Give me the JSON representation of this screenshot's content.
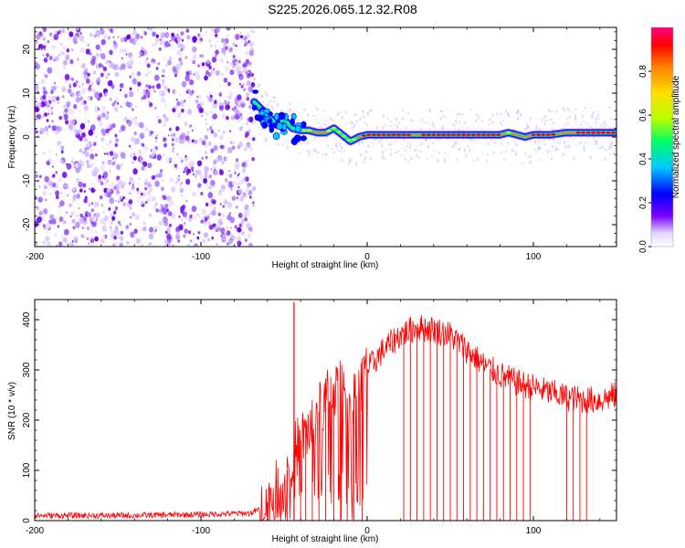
{
  "title": "S225.2026.065.12.32.R08",
  "chart_data": [
    {
      "type": "heatmap",
      "title": "S225.2026.065.12.32.R08",
      "xlabel": "Height of straight line (km)",
      "ylabel": "Frequency (Hz)",
      "xlim": [
        -200,
        150
      ],
      "ylim": [
        -25,
        25
      ],
      "x_ticks": [
        "-200",
        "-100",
        "0",
        "100"
      ],
      "y_ticks": [
        "20",
        "10",
        "0",
        "-10",
        "-20"
      ],
      "colorbar": {
        "label": "Normalized spectral amplitude",
        "range": [
          0,
          1
        ],
        "ticks": [
          "0.0",
          "0.2",
          "0.4",
          "0.6",
          "0.8"
        ],
        "colormap": [
          "#ffffff",
          "#7a00ff",
          "#0000ff",
          "#00c8ff",
          "#00ff66",
          "#b4ff00",
          "#ffe000",
          "#ff8000",
          "#ff0000",
          "#ff0080"
        ]
      },
      "noise_region": {
        "x_range": [
          -200,
          -68
        ],
        "freq_range": [
          -25,
          25
        ],
        "amplitude": 0.05
      },
      "signal_ridge": {
        "x": [
          -68,
          -60,
          -55,
          -50,
          -45,
          -40,
          -35,
          -30,
          -25,
          -20,
          -15,
          -10,
          -5,
          0,
          10,
          20,
          30,
          40,
          50,
          60,
          70,
          80,
          85,
          90,
          95,
          100,
          110,
          120,
          130,
          140,
          150
        ],
        "freq": [
          8,
          5,
          3,
          4,
          2,
          1.5,
          1.5,
          1,
          1,
          2,
          0.5,
          -1,
          0,
          0.5,
          0.5,
          0.5,
          0.5,
          0.5,
          0.5,
          0.5,
          0.5,
          0.5,
          1,
          0.5,
          0,
          0.5,
          0.5,
          1,
          1,
          1,
          1
        ],
        "amplitude": [
          0.3,
          0.3,
          0.35,
          0.4,
          0.45,
          0.55,
          0.75,
          0.85,
          0.8,
          0.7,
          0.6,
          0.5,
          0.85,
          0.95,
          0.9,
          0.95,
          0.85,
          0.95,
          0.9,
          0.95,
          0.9,
          0.9,
          0.7,
          0.9,
          0.8,
          0.9,
          0.9,
          0.85,
          0.9,
          0.9,
          0.9
        ]
      }
    },
    {
      "type": "line",
      "xlabel": "Height of straight line (km)",
      "ylabel": "SNR (10 * v/v)",
      "xlim": [
        -200,
        150
      ],
      "ylim": [
        0,
        440
      ],
      "x_ticks": [
        "-200",
        "-100",
        "0",
        "100"
      ],
      "y_ticks": [
        "400",
        "300",
        "200",
        "100",
        "0"
      ],
      "color": "#ff0000",
      "envelope": {
        "x": [
          -200,
          -150,
          -100,
          -70,
          -60,
          -55,
          -50,
          -45,
          -40,
          -35,
          -30,
          -25,
          -20,
          -15,
          -10,
          -5,
          0,
          5,
          10,
          20,
          30,
          40,
          50,
          60,
          70,
          80,
          90,
          100,
          110,
          120,
          130,
          140,
          150
        ],
        "y": [
          10,
          10,
          12,
          15,
          30,
          60,
          80,
          130,
          160,
          180,
          210,
          240,
          260,
          260,
          230,
          260,
          300,
          320,
          340,
          370,
          385,
          380,
          370,
          340,
          310,
          290,
          275,
          265,
          255,
          245,
          240,
          240,
          250
        ]
      },
      "spike": {
        "x": -44,
        "y": 435
      },
      "dropouts_x": [
        -52,
        -48,
        -40,
        -37,
        -33,
        -29,
        -25,
        -20,
        -16,
        -12,
        -8,
        -3,
        22,
        26,
        30,
        34,
        38,
        42,
        46,
        50,
        54,
        58,
        62,
        66,
        70,
        74,
        78,
        82,
        86,
        90,
        94,
        98,
        120,
        124,
        128,
        132
      ]
    }
  ]
}
